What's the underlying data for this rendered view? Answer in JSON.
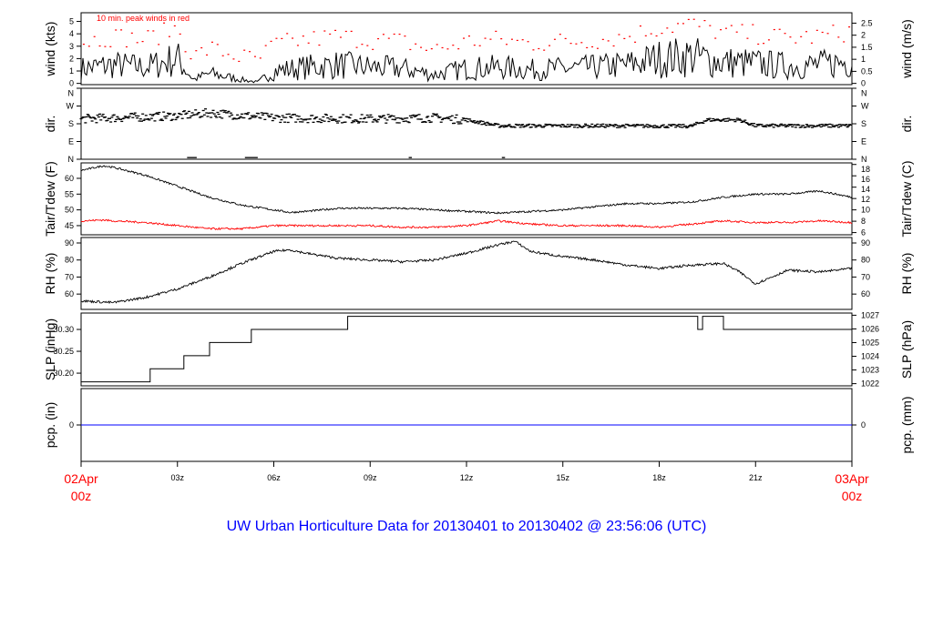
{
  "chart_data": [
    {
      "type": "line",
      "id": "wind",
      "ylabel_left": "wind (kts)",
      "ylabel_right": "wind (m/s)",
      "ylim": [
        -0.1,
        5.7
      ],
      "left_ticks": [
        "0",
        "1",
        "2",
        "3",
        "4",
        "5"
      ],
      "right_ticks": [
        "0",
        "0.5",
        "1",
        "1.5",
        "2",
        "2.5"
      ],
      "annotation": "10 min. peak winds in red",
      "x_hours": [
        0,
        1,
        2,
        3,
        3.5,
        4,
        5,
        5.5,
        6,
        7,
        8,
        9,
        10,
        11,
        12,
        13,
        14,
        15,
        16,
        17,
        18,
        19,
        20,
        21,
        22,
        23,
        24
      ],
      "mean_kts": [
        1.2,
        1.5,
        1.3,
        2.0,
        0.3,
        0.8,
        0.3,
        0.1,
        1.0,
        1.3,
        1.5,
        1.3,
        1.2,
        0.7,
        1.2,
        1.3,
        1.1,
        1.2,
        1.3,
        1.5,
        2.0,
        2.2,
        1.7,
        1.6,
        1.4,
        1.5,
        1.8
      ],
      "series_colors": {
        "wind": "#000000",
        "peak": "#ff0000"
      }
    },
    {
      "type": "scatter",
      "id": "dir",
      "ylabel_left": "dir.",
      "ylabel_right": "dir.",
      "ylim": [
        0,
        360
      ],
      "left_ticks": [
        "N",
        "E",
        "S",
        "W",
        "N"
      ],
      "right_ticks": [
        "N",
        "E",
        "S",
        "W",
        "N"
      ],
      "x_hours": [
        0,
        3,
        4,
        6,
        9,
        11,
        12,
        13,
        16,
        19,
        19.5,
        20.5,
        21,
        24
      ],
      "deg": [
        205,
        220,
        235,
        210,
        205,
        210,
        200,
        170,
        170,
        168,
        200,
        200,
        170,
        170
      ]
    },
    {
      "type": "line",
      "id": "temp",
      "ylabel_left": "Tair/Tdew (F)",
      "ylabel_right": "Tair/Tdew (C)",
      "ylim": [
        42.1,
        64.9
      ],
      "left_ticks": [
        "45",
        "50",
        "55",
        "60"
      ],
      "right_ticks": [
        "6",
        "8",
        "10",
        "12",
        "14",
        "16",
        "18"
      ],
      "x_hours": [
        0,
        0.7,
        1,
        2,
        3,
        4,
        5,
        6,
        6.5,
        7,
        8,
        9,
        10,
        11,
        12,
        13,
        14,
        15,
        16,
        17,
        18,
        19,
        20,
        21,
        22,
        23,
        24
      ],
      "series": [
        {
          "name": "Tair",
          "color": "#000000",
          "values": [
            62.5,
            64,
            63.5,
            61,
            57.5,
            54,
            51.5,
            50,
            49.2,
            49.5,
            50.5,
            50.5,
            50.5,
            50,
            49.5,
            49,
            49.5,
            50,
            51,
            52,
            52,
            52.5,
            54,
            55,
            55,
            56,
            54
          ]
        },
        {
          "name": "Tdew",
          "color": "#ff0000",
          "values": [
            46.5,
            46.8,
            46.5,
            46,
            45,
            44,
            44,
            45,
            45,
            45,
            45,
            45,
            44.5,
            44.5,
            45,
            46.5,
            45.5,
            45,
            45,
            45,
            44.5,
            45.5,
            46.5,
            46,
            46,
            46.5,
            46
          ]
        }
      ]
    },
    {
      "type": "line",
      "id": "rh",
      "ylabel_left": "RH (%)",
      "ylabel_right": "RH (%)",
      "ylim": [
        51,
        93.2
      ],
      "left_ticks": [
        "60",
        "70",
        "80",
        "90"
      ],
      "right_ticks": [
        "60",
        "70",
        "80",
        "90"
      ],
      "x_hours": [
        0,
        1,
        2,
        3,
        4,
        5,
        6,
        6.5,
        7,
        8,
        9,
        10,
        11,
        12,
        13,
        13.5,
        14,
        15,
        16,
        17,
        18,
        19,
        20,
        20.5,
        21,
        21.5,
        22,
        23,
        24
      ],
      "values": [
        56,
        55,
        58,
        63,
        70,
        78,
        85,
        86,
        84,
        81,
        80,
        79,
        80,
        84,
        89,
        91,
        85,
        82,
        80,
        77,
        75,
        77,
        78,
        73,
        66,
        70,
        74,
        73,
        75
      ]
    },
    {
      "type": "line",
      "id": "slp",
      "ylabel_left": "SLP (inHg)",
      "ylabel_right": "SLP (hPa)",
      "ylim": [
        30.171,
        30.3375
      ],
      "left_ticks": [
        "30.20",
        "30.25",
        "30.30"
      ],
      "right_ticks": [
        "1022",
        "1023",
        "1024",
        "1025",
        "1026",
        "1027"
      ],
      "step_hours": [
        0,
        2.15,
        3.2,
        4.0,
        5.3,
        8.3,
        19.2,
        19.35,
        20.0,
        24
      ],
      "step_values": [
        30.18,
        30.21,
        30.24,
        30.27,
        30.3,
        30.33,
        30.3,
        30.33,
        30.3,
        30.3
      ]
    },
    {
      "type": "line",
      "id": "pcp",
      "ylabel_left": "pcp. (in)",
      "ylabel_right": "pcp. (mm)",
      "ylim": [
        -1,
        1
      ],
      "left_ticks": [
        "0"
      ],
      "right_ticks": [
        "0"
      ],
      "value": 0,
      "color": "#0000ff"
    }
  ],
  "x_axis": {
    "start_label": [
      "02Apr",
      "00z"
    ],
    "end_label": [
      "03Apr",
      "00z"
    ],
    "ticks": [
      "03z",
      "06z",
      "09z",
      "12z",
      "15z",
      "18z",
      "21z"
    ],
    "edge_color": "#ff0000"
  },
  "title": "UW Urban Horticulture Data for 20130401  to  20130402 @ 23:56:06  (UTC)",
  "title_color": "#0000ff"
}
